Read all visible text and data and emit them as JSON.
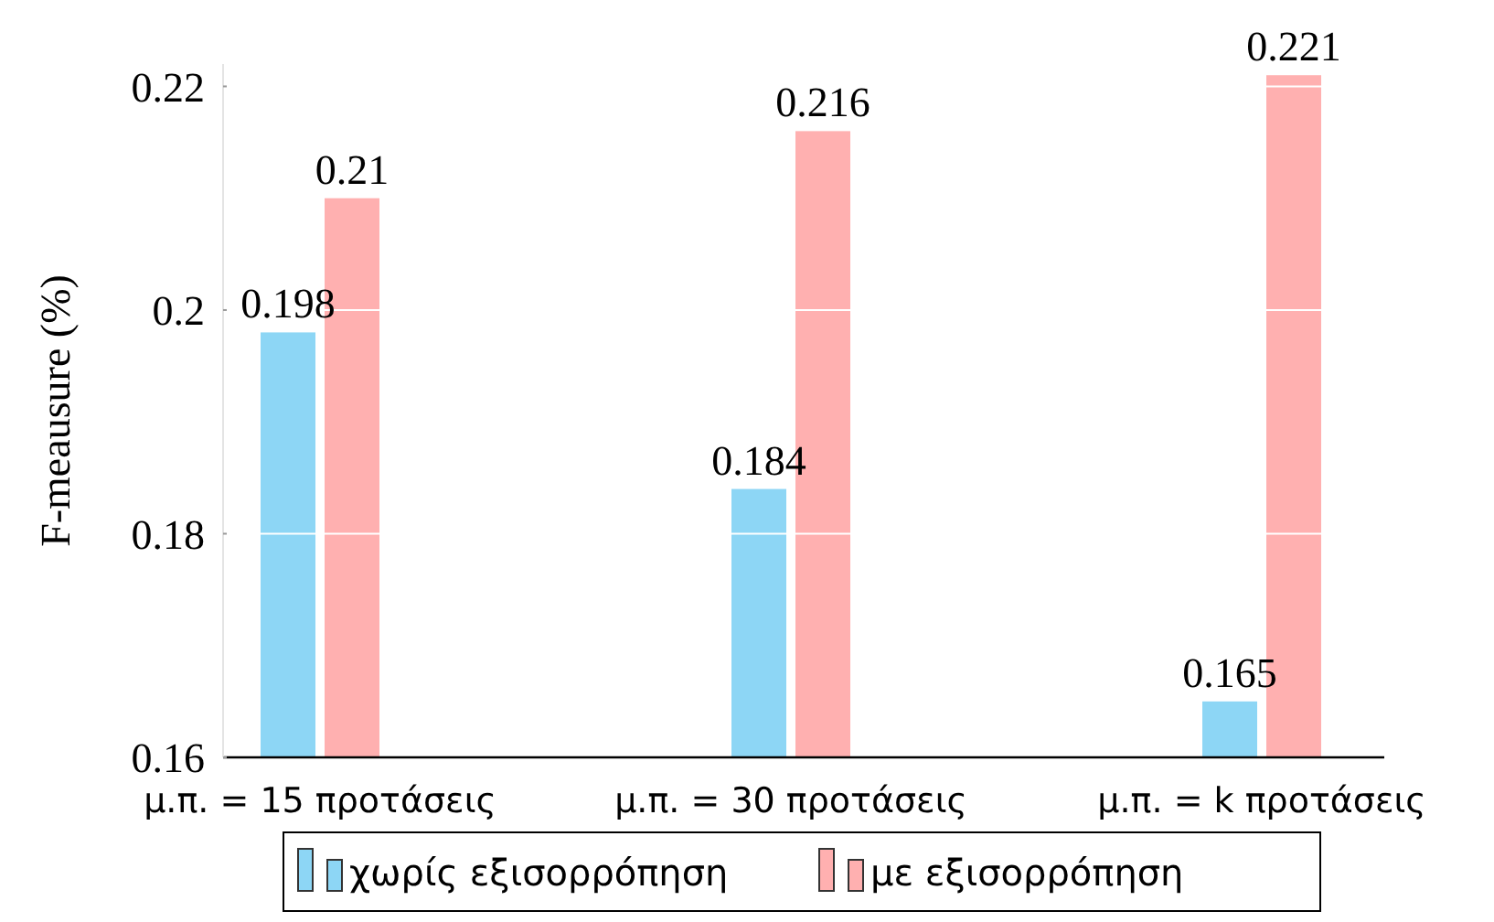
{
  "chart_data": {
    "type": "bar",
    "ylabel": "F-meausure (%)",
    "categories": [
      "μ.π. = 15 προτάσεις",
      "μ.π. = 30 προτάσεις",
      "μ.π. = k προτάσεις"
    ],
    "series": [
      {
        "name": "χωρίς εξισορρόπηση",
        "color": "#8dd6f5",
        "values": [
          0.198,
          0.184,
          0.165
        ]
      },
      {
        "name": "με εξισορρόπηση",
        "color": "#ffb0b0",
        "values": [
          0.21,
          0.216,
          0.221
        ]
      }
    ],
    "ylim": [
      0.16,
      0.222
    ],
    "yticks": [
      0.16,
      0.18,
      {
        "value": 0.2,
        "label": "0.2"
      },
      0.22
    ],
    "grid": "y",
    "data_labels": true,
    "legend": "bottom"
  }
}
